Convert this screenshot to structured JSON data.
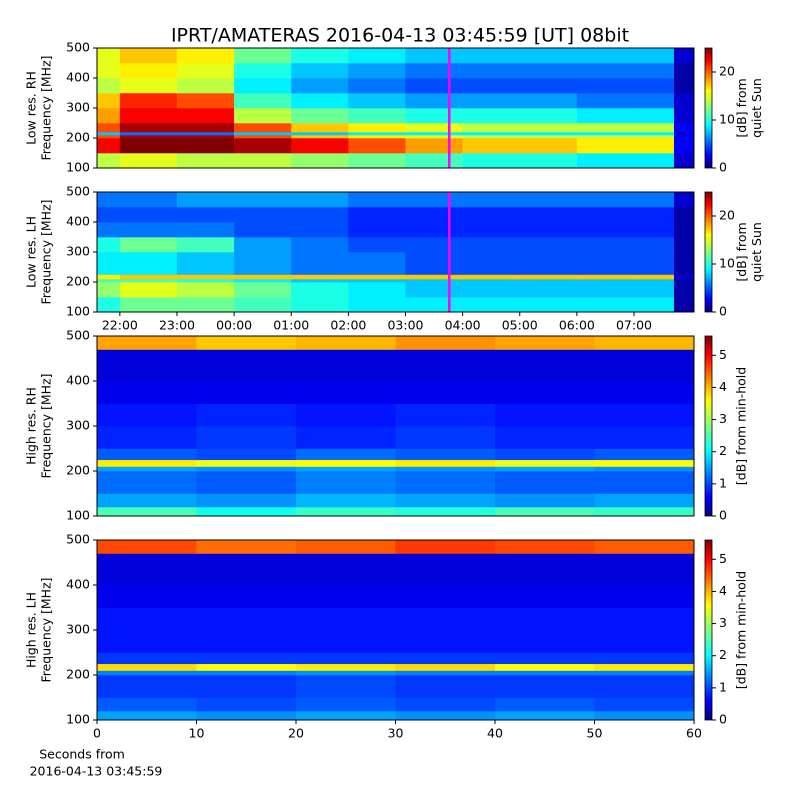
{
  "chart_data": [
    {
      "type": "heatmap",
      "title": "IPRT/AMATERAS 2016-04-13 03:45:59 [UT]   08bit",
      "ylabel": [
        "Low res. RH",
        "Frequency [MHz]"
      ],
      "colorbar_label": [
        "[dB] from",
        "quiet Sun"
      ],
      "colormap": "jet",
      "xlim": [
        21.6,
        32.05
      ],
      "ylim": [
        100,
        500
      ],
      "yticks": [
        100,
        200,
        300,
        400,
        500
      ],
      "clim": [
        0,
        25
      ],
      "cticks": [
        0,
        10,
        20
      ],
      "cursor": 27.766,
      "x_edges": [
        21.6,
        22,
        23,
        24,
        25,
        26,
        27,
        28,
        29,
        30,
        31,
        31.7,
        32.05
      ],
      "y_edges": [
        100,
        150,
        200,
        210,
        220,
        250,
        300,
        350,
        400,
        450,
        500
      ],
      "values": [
        [
          14,
          15,
          14,
          14,
          13,
          12,
          11,
          10,
          10,
          9,
          9,
          2
        ],
        [
          22,
          25,
          25,
          24,
          22,
          20,
          18,
          17,
          17,
          16,
          16,
          3
        ],
        [
          20,
          24,
          24,
          20,
          17,
          16,
          15,
          14,
          14,
          14,
          14,
          3
        ],
        [
          8,
          6,
          6,
          8,
          8,
          9,
          9,
          9,
          9,
          9,
          9,
          2
        ],
        [
          20,
          24,
          24,
          20,
          17,
          16,
          15,
          14,
          14,
          14,
          14,
          3
        ],
        [
          18,
          22,
          22,
          14,
          12,
          11,
          10,
          10,
          10,
          9,
          9,
          2
        ],
        [
          17,
          21,
          20,
          11,
          9,
          8,
          7,
          7,
          7,
          6,
          6,
          2
        ],
        [
          14,
          15,
          14,
          9,
          7,
          6,
          5,
          5,
          5,
          5,
          5,
          1
        ],
        [
          15,
          16,
          15,
          10,
          8,
          7,
          6,
          6,
          6,
          6,
          6,
          1
        ],
        [
          15,
          17,
          16,
          12,
          10,
          9,
          8,
          8,
          8,
          8,
          8,
          2
        ]
      ]
    },
    {
      "type": "heatmap",
      "ylabel": [
        "Low res. LH",
        "Frequency [MHz]"
      ],
      "colorbar_label": [
        "[dB] from",
        "quiet Sun"
      ],
      "colormap": "jet",
      "xlim": [
        21.6,
        32.05
      ],
      "ylim": [
        100,
        500
      ],
      "yticks": [
        100,
        200,
        300,
        400,
        500
      ],
      "xticks": [
        {
          "value": 22,
          "label": "22:00"
        },
        {
          "value": 23,
          "label": "23:00"
        },
        {
          "value": 24,
          "label": "00:00"
        },
        {
          "value": 25,
          "label": "01:00"
        },
        {
          "value": 26,
          "label": "02:00"
        },
        {
          "value": 27,
          "label": "03:00"
        },
        {
          "value": 28,
          "label": "04:00"
        },
        {
          "value": 29,
          "label": "05:00"
        },
        {
          "value": 30,
          "label": "06:00"
        },
        {
          "value": 31,
          "label": "07:00"
        }
      ],
      "clim": [
        0,
        25
      ],
      "cticks": [
        0,
        10,
        20
      ],
      "cursor": 27.766,
      "x_edges": [
        21.6,
        22,
        23,
        24,
        25,
        26,
        27,
        28,
        29,
        30,
        31,
        31.7,
        32.05
      ],
      "y_edges": [
        100,
        150,
        200,
        210,
        225,
        250,
        300,
        350,
        400,
        450,
        500
      ],
      "values": [
        [
          10,
          12,
          12,
          11,
          10,
          9,
          9,
          9,
          9,
          9,
          9,
          1
        ],
        [
          13,
          15,
          14,
          12,
          10,
          9,
          8,
          8,
          8,
          8,
          8,
          1
        ],
        [
          11,
          11,
          10,
          9,
          8,
          8,
          8,
          8,
          8,
          8,
          8,
          1
        ],
        [
          16,
          17,
          17,
          17,
          17,
          17,
          17,
          17,
          17,
          17,
          17,
          2
        ],
        [
          9,
          9,
          8,
          7,
          6,
          6,
          5,
          5,
          5,
          5,
          5,
          1
        ],
        [
          9,
          9,
          8,
          7,
          6,
          6,
          5,
          5,
          5,
          5,
          5,
          1
        ],
        [
          10,
          12,
          11,
          7,
          6,
          5,
          5,
          5,
          5,
          5,
          5,
          1
        ],
        [
          6,
          6,
          6,
          5,
          5,
          4,
          4,
          4,
          4,
          4,
          4,
          1
        ],
        [
          5,
          5,
          5,
          5,
          5,
          4,
          4,
          4,
          4,
          4,
          4,
          1
        ],
        [
          6,
          6,
          7,
          7,
          7,
          6,
          6,
          6,
          6,
          6,
          6,
          2
        ]
      ]
    },
    {
      "type": "heatmap",
      "ylabel": [
        "High res. RH",
        "Frequency [MHz]"
      ],
      "colorbar_label": [
        "[dB] from min-hold"
      ],
      "colormap": "jet",
      "xlim": [
        0,
        60
      ],
      "ylim": [
        100,
        500
      ],
      "yticks": [
        100,
        200,
        300,
        400,
        500
      ],
      "clim": [
        0,
        5.6
      ],
      "cticks": [
        0,
        1,
        2,
        3,
        4,
        5
      ],
      "x_edges": [
        0,
        10,
        20,
        30,
        40,
        50,
        60
      ],
      "y_edges": [
        100,
        120,
        150,
        200,
        210,
        225,
        250,
        300,
        350,
        400,
        470,
        500
      ],
      "values": [
        [
          2.5,
          2.2,
          2.4,
          2.3,
          2.5,
          2.4
        ],
        [
          1.6,
          1.5,
          1.7,
          1.6,
          1.5,
          1.6
        ],
        [
          1.3,
          1.2,
          1.4,
          1.3,
          1.2,
          1.2
        ],
        [
          1.6,
          1.5,
          1.6,
          1.5,
          1.6,
          1.5
        ],
        [
          3.6,
          3.4,
          3.5,
          3.6,
          3.4,
          3.5
        ],
        [
          1.2,
          1.1,
          1.3,
          1.2,
          1.1,
          1.2
        ],
        [
          0.9,
          1.0,
          0.9,
          1.0,
          0.9,
          0.9
        ],
        [
          0.8,
          0.9,
          0.8,
          0.9,
          0.8,
          0.8
        ],
        [
          0.6,
          0.6,
          0.6,
          0.6,
          0.6,
          0.6
        ],
        [
          0.5,
          0.5,
          0.5,
          0.5,
          0.5,
          0.5
        ],
        [
          4.0,
          3.8,
          3.9,
          4.1,
          4.0,
          3.9
        ]
      ]
    },
    {
      "type": "heatmap",
      "ylabel": [
        "High res. LH",
        "Frequency [MHz]"
      ],
      "colorbar_label": [
        "[dB] from min-hold"
      ],
      "colormap": "jet",
      "xlabel": [
        "Seconds from",
        "2016-04-13 03:45:59"
      ],
      "xlim": [
        0,
        60
      ],
      "ylim": [
        100,
        500
      ],
      "yticks": [
        100,
        200,
        300,
        400,
        500
      ],
      "xticks": [
        0,
        10,
        20,
        30,
        40,
        50,
        60
      ],
      "clim": [
        0,
        5.6
      ],
      "cticks": [
        0,
        1,
        2,
        3,
        4,
        5
      ],
      "x_edges": [
        0,
        10,
        20,
        30,
        40,
        50,
        60
      ],
      "y_edges": [
        100,
        120,
        150,
        200,
        210,
        225,
        250,
        300,
        350,
        400,
        470,
        500
      ],
      "values": [
        [
          1.6,
          1.5,
          1.6,
          1.5,
          1.6,
          1.5
        ],
        [
          1.2,
          1.1,
          1.2,
          1.1,
          1.2,
          1.1
        ],
        [
          1.0,
          1.0,
          1.1,
          1.0,
          1.0,
          1.0
        ],
        [
          1.4,
          1.4,
          1.5,
          1.4,
          1.4,
          1.4
        ],
        [
          3.7,
          3.5,
          3.6,
          3.7,
          3.5,
          3.6
        ],
        [
          1.0,
          1.0,
          1.0,
          1.0,
          1.0,
          1.0
        ],
        [
          0.8,
          0.8,
          0.8,
          0.8,
          0.8,
          0.8
        ],
        [
          0.8,
          0.8,
          0.8,
          0.8,
          0.8,
          0.8
        ],
        [
          0.6,
          0.6,
          0.6,
          0.6,
          0.6,
          0.6
        ],
        [
          0.5,
          0.5,
          0.5,
          0.5,
          0.5,
          0.5
        ],
        [
          4.5,
          4.3,
          4.4,
          4.6,
          4.5,
          4.4
        ]
      ]
    }
  ]
}
